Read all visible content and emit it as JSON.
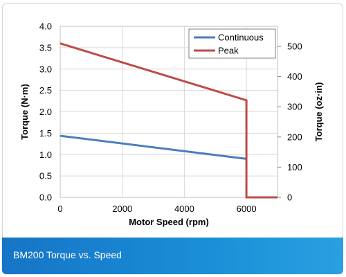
{
  "caption": "BM200 Torque vs. Speed",
  "chart_data": {
    "type": "line",
    "xlabel": "Motor Speed (rpm)",
    "ylabel": "Torque (N·m)",
    "y2label": "Torque (oz·in)",
    "xlim": [
      0,
      7000
    ],
    "ylim": [
      0,
      4.0
    ],
    "y2lim": [
      0,
      566.4
    ],
    "x_ticks": [
      "0",
      "2000",
      "4000",
      "6000"
    ],
    "y_ticks": [
      "0.0",
      "0.5",
      "1.0",
      "1.5",
      "2.0",
      "2.5",
      "3.0",
      "3.5",
      "4.0"
    ],
    "y2_ticks": [
      "0",
      "100",
      "200",
      "300",
      "400",
      "500"
    ],
    "grid": true,
    "legend_position": "top-right",
    "series": [
      {
        "name": "Continuous",
        "color": "#4a7ebb",
        "x": [
          0,
          6000
        ],
        "y": [
          1.44,
          0.9
        ]
      },
      {
        "name": "Peak",
        "color": "#be4b48",
        "x": [
          0,
          6000,
          6000,
          7000
        ],
        "y": [
          3.6,
          2.27,
          0,
          0
        ]
      }
    ]
  }
}
